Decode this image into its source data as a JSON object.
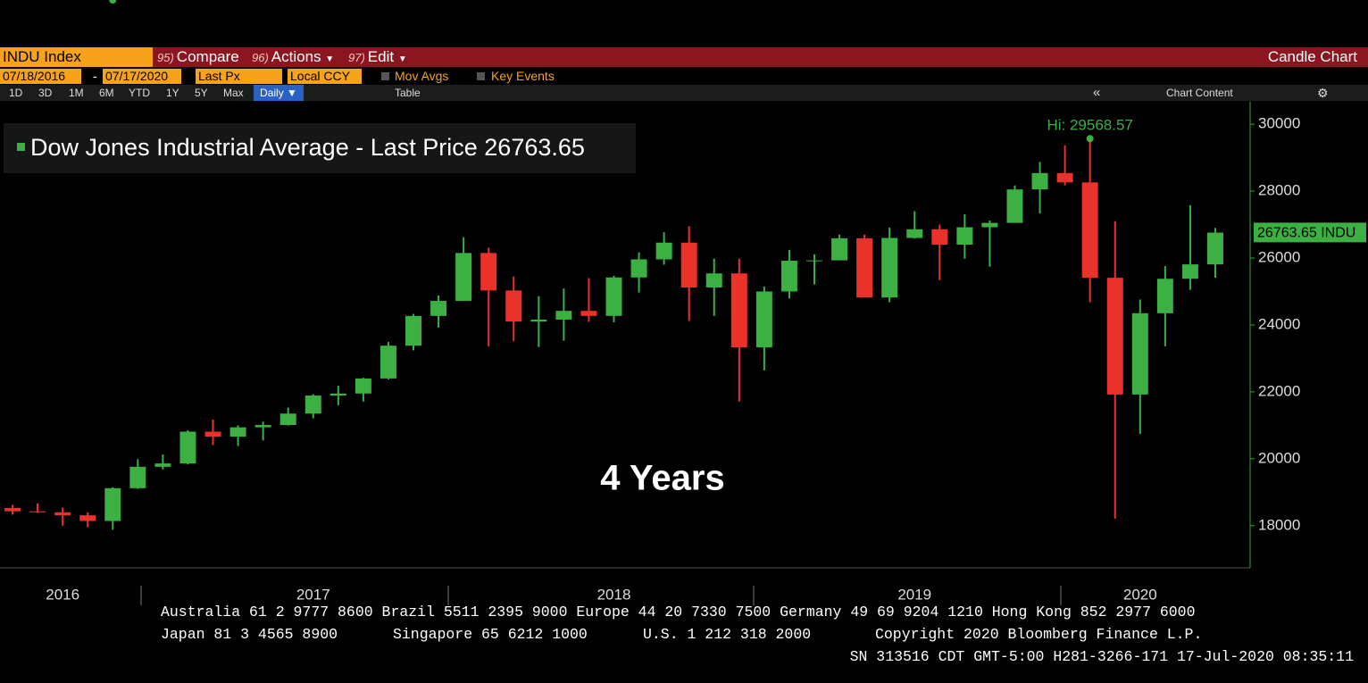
{
  "toolbar": {
    "ticker": "INDU Index",
    "menus": [
      {
        "num": "95)",
        "label": "Compare"
      },
      {
        "num": "96)",
        "label": "Actions"
      },
      {
        "num": "97)",
        "label": "Edit"
      }
    ],
    "chart_kind": "Candle Chart",
    "start_date": "07/18/2016",
    "end_date": "07/17/2020",
    "field": "Last Px",
    "currency": "Local CCY",
    "options": [
      "Mov Avgs",
      "Key Events"
    ],
    "periods": [
      "1D",
      "3D",
      "1M",
      "6M",
      "YTD",
      "1Y",
      "5Y",
      "Max"
    ],
    "frequency": "Daily",
    "table": "Table",
    "chart_content": "Chart Content"
  },
  "chart_data": {
    "type": "candlestick",
    "series_name": "Dow Jones Industrial Average - Last Price",
    "last_price": 26763.65,
    "last_ticker": "INDU",
    "overlay": "4 Years",
    "up_color": "#3cb043",
    "down_color": "#e8322a",
    "axis_color": "#35a83a",
    "hi": {
      "label": "Hi:",
      "value": 29568.57
    },
    "low": [
      18330,
      18380,
      18000,
      17950,
      17880,
      19100,
      19680,
      19830,
      20410,
      20380,
      20550,
      20990,
      21210,
      21600,
      21710,
      22370,
      23240,
      23920,
      24720,
      23360,
      23510,
      23340,
      23530,
      24090,
      24080,
      24970,
      25800,
      24120,
      24270,
      21710,
      22640,
      24790,
      25210,
      25960,
      24820,
      24680,
      26580,
      25340,
      25980,
      25740,
      27050,
      27330,
      28170,
      24680,
      18210,
      20740,
      23360,
      25050,
      25410
    ],
    "categories": [
      null,
      null,
      "2016",
      null,
      null,
      null,
      null,
      null,
      null,
      null,
      null,
      null,
      "2017",
      null,
      null,
      null,
      null,
      null,
      null,
      null,
      null,
      null,
      null,
      null,
      "2018",
      null,
      null,
      null,
      null,
      null,
      null,
      null,
      null,
      null,
      null,
      null,
      "2019",
      null,
      null,
      null,
      null,
      null,
      null,
      null,
      null,
      "2020",
      null,
      null,
      null
    ],
    "open": [
      18530,
      18430,
      18400,
      18310,
      18140,
      19120,
      19760,
      19860,
      20810,
      20660,
      20940,
      21010,
      21350,
      21890,
      21950,
      22400,
      23380,
      24270,
      24720,
      26150,
      25030,
      24100,
      24160,
      24420,
      24270,
      25420,
      25960,
      26460,
      25120,
      25540,
      23330,
      25000,
      25920,
      25930,
      26590,
      24820,
      26600,
      26860,
      26400,
      26920,
      27050,
      28050,
      28540,
      28260,
      25410,
      21920,
      24350,
      25380,
      25810
    ],
    "high": [
      18620,
      18670,
      18540,
      18400,
      19150,
      19990,
      20130,
      20850,
      21170,
      21000,
      21110,
      21530,
      21930,
      22180,
      22420,
      23490,
      24330,
      24880,
      26620,
      26310,
      25450,
      24860,
      25090,
      25400,
      25470,
      26170,
      26770,
      26950,
      25980,
      25980,
      25150,
      26240,
      26110,
      26700,
      26700,
      26910,
      27400,
      27000,
      27310,
      27120,
      28170,
      28870,
      29370,
      29570,
      27100,
      24760,
      25760,
      27580,
      26900
    ],
    "close": [
      18430,
      18400,
      18310,
      18140,
      19120,
      19760,
      19860,
      20810,
      20660,
      20940,
      21010,
      21350,
      21890,
      21950,
      22400,
      23380,
      24270,
      24720,
      26150,
      25030,
      24100,
      24160,
      24420,
      24270,
      25420,
      25960,
      26460,
      25120,
      25540,
      23330,
      25000,
      25920,
      25930,
      26590,
      24820,
      26600,
      26860,
      26400,
      26920,
      27050,
      28050,
      28540,
      28260,
      25410,
      21920,
      24350,
      25380,
      25810,
      26760
    ],
    "ylim": [
      16740,
      30670
    ],
    "yticks": [
      18000,
      20000,
      22000,
      24000,
      26000,
      28000,
      30000
    ]
  },
  "footer": {
    "line1": "Australia 61 2 9777 8600 Brazil 5511 2395 9000 Europe 44 20 7330 7500 Germany 49 69 9204 1210 Hong Kong 852 2977 6000",
    "line2": [
      "Japan 81 3 4565 8900",
      "Singapore 65 6212 1000",
      "U.S. 1 212 318 2000",
      "Copyright 2020 Bloomberg Finance L.P."
    ],
    "line3": "SN 313516 CDT  GMT-5:00 H281-3266-171 17-Jul-2020 08:35:11"
  }
}
